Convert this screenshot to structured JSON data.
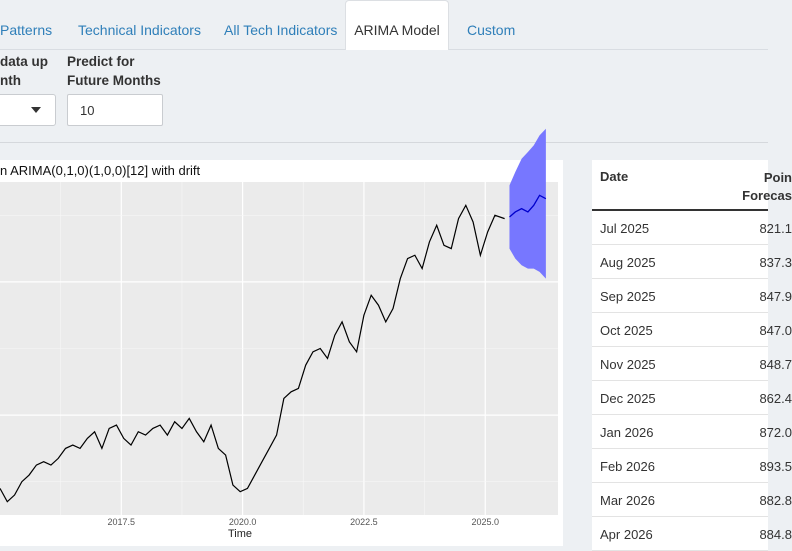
{
  "tabs": [
    {
      "label": "Patterns",
      "active": false
    },
    {
      "label": "Technical Indicators",
      "active": false
    },
    {
      "label": "All Tech Indicators",
      "active": false
    },
    {
      "label": "ARIMA Model",
      "active": true
    },
    {
      "label": "Custom",
      "active": false
    }
  ],
  "controls": {
    "data_label": "data up\nnth",
    "predict_label": "Predict for\nFuture Months",
    "predict_value": "10"
  },
  "plot": {
    "title": "n ARIMA(0,1,0)(1,0,0)[12] with drift",
    "xlabel": "Time"
  },
  "chart_data": {
    "type": "line",
    "title": "n ARIMA(0,1,0)(1,0,0)[12] with drift",
    "xlabel": "Time",
    "xlim": [
      2015.0,
      2026.5
    ],
    "ylim": [
      0,
      100
    ],
    "x_ticks": [
      "2017.5",
      "2020.0",
      "2022.5",
      "2025.0"
    ],
    "grid": true,
    "series": [
      {
        "role": "history",
        "color": "#000000",
        "x": [
          2015.0,
          2015.15,
          2015.3,
          2015.45,
          2015.6,
          2015.75,
          2015.9,
          2016.05,
          2016.2,
          2016.35,
          2016.5,
          2016.65,
          2016.8,
          2016.95,
          2017.1,
          2017.25,
          2017.4,
          2017.55,
          2017.7,
          2017.85,
          2018.0,
          2018.15,
          2018.3,
          2018.45,
          2018.6,
          2018.75,
          2018.9,
          2019.05,
          2019.2,
          2019.35,
          2019.5,
          2019.65,
          2019.8,
          2019.95,
          2020.1,
          2020.25,
          2020.4,
          2020.55,
          2020.7,
          2020.85,
          2021.0,
          2021.15,
          2021.3,
          2021.45,
          2021.6,
          2021.75,
          2021.9,
          2022.05,
          2022.2,
          2022.35,
          2022.5,
          2022.65,
          2022.8,
          2022.95,
          2023.1,
          2023.25,
          2023.4,
          2023.55,
          2023.7,
          2023.85,
          2024.0,
          2024.15,
          2024.3,
          2024.45,
          2024.6,
          2024.75,
          2024.9,
          2025.05,
          2025.2,
          2025.4
        ],
        "y": [
          8,
          4,
          6,
          10,
          12,
          15,
          16,
          15,
          17,
          20,
          21,
          20,
          23,
          25,
          20,
          26,
          27,
          23,
          21,
          25,
          24,
          26,
          27,
          24,
          28,
          26,
          29,
          25,
          22,
          27,
          20,
          18,
          9,
          7,
          8,
          12,
          16,
          20,
          24,
          35,
          37,
          38,
          45,
          49,
          50,
          47,
          54,
          58,
          52,
          49,
          60,
          66,
          63,
          58,
          62,
          71,
          77,
          78,
          74,
          82,
          87,
          81,
          80,
          89,
          93,
          88,
          78,
          85,
          90,
          89
        ]
      },
      {
        "role": "forecast",
        "color": "#0000cc",
        "x": [
          2025.5,
          2025.62,
          2025.75,
          2025.88,
          2026.0,
          2026.12,
          2026.25
        ],
        "y": [
          89.5,
          91,
          92,
          91,
          93,
          96,
          95
        ]
      }
    ],
    "forecast_band": {
      "color": "#7777ff",
      "x": [
        2025.5,
        2025.62,
        2025.75,
        2025.88,
        2026.0,
        2026.12,
        2026.25
      ],
      "lower": [
        80,
        77,
        75,
        74,
        74,
        73,
        71
      ],
      "upper": [
        99,
        103,
        107,
        109,
        111,
        114,
        116
      ]
    }
  },
  "table": {
    "header_date": "Date",
    "header_forecast": "Poin\nForecas",
    "rows": [
      {
        "date": "Jul 2025",
        "value": "821.1"
      },
      {
        "date": "Aug 2025",
        "value": "837.3"
      },
      {
        "date": "Sep 2025",
        "value": "847.9"
      },
      {
        "date": "Oct 2025",
        "value": "847.0"
      },
      {
        "date": "Nov 2025",
        "value": "848.7"
      },
      {
        "date": "Dec 2025",
        "value": "862.4"
      },
      {
        "date": "Jan 2026",
        "value": "872.0"
      },
      {
        "date": "Feb 2026",
        "value": "893.5"
      },
      {
        "date": "Mar 2026",
        "value": "882.8"
      },
      {
        "date": "Apr 2026",
        "value": "884.8"
      }
    ]
  }
}
